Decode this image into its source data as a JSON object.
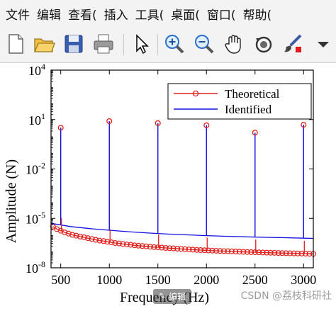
{
  "menu": [
    "文件",
    "编辑",
    "查看(",
    "插入",
    "工具(",
    "桌面(",
    "窗口(",
    "帮助("
  ],
  "toolbar_icons": [
    "new-file-icon",
    "open-folder-icon",
    "save-icon",
    "print-icon",
    "select-arrow-icon",
    "zoom-in-icon",
    "zoom-out-icon",
    "pan-hand-icon",
    "rotate-3d-icon",
    "brush-icon",
    "dropdown-arrow-icon"
  ],
  "watermark": {
    "edit_label": "编辑",
    "credit": "CSDN @荔枝科研社"
  },
  "chart_data": {
    "type": "line",
    "xlabel": "Frequency (Hz)",
    "ylabel": "Amplitude (N)",
    "xlim": [
      400,
      3100
    ],
    "ylim_log10": [
      -8,
      4
    ],
    "y_scale": "log",
    "xticks": [
      500,
      1000,
      1500,
      2000,
      2500,
      3000
    ],
    "yticks": [
      {
        "exp": -8,
        "label": "10",
        "sup": "-8"
      },
      {
        "exp": -5,
        "label": "10",
        "sup": "-5"
      },
      {
        "exp": -2,
        "label": "10",
        "sup": "-2"
      },
      {
        "exp": 1,
        "label": "10",
        "sup": "1"
      },
      {
        "exp": 4,
        "label": "10",
        "sup": "4"
      }
    ],
    "grid": false,
    "legend_position": "top-right",
    "series": [
      {
        "name": "Theoretical",
        "color": "#e0201b",
        "style": "line-circle-markers",
        "points": [
          [
            420,
            3.16e-06
          ],
          [
            460,
            2.24e-06
          ],
          [
            500,
            1.78e-06
          ],
          [
            540,
            1.41e-06
          ],
          [
            580,
            1.2e-06
          ],
          [
            620,
            1e-06
          ],
          [
            660,
            8.9e-07
          ],
          [
            700,
            7.9e-07
          ],
          [
            740,
            7.1e-07
          ],
          [
            780,
            6.3e-07
          ],
          [
            820,
            5.6e-07
          ],
          [
            860,
            5e-07
          ],
          [
            900,
            4.5e-07
          ],
          [
            940,
            4.2e-07
          ],
          [
            980,
            3.8e-07
          ],
          [
            1020,
            3.5e-07
          ],
          [
            1060,
            3.2e-07
          ],
          [
            1100,
            3e-07
          ],
          [
            1140,
            2.8e-07
          ],
          [
            1180,
            2.6e-07
          ],
          [
            1220,
            2.5e-07
          ],
          [
            1260,
            2.3e-07
          ],
          [
            1300,
            2.2e-07
          ],
          [
            1340,
            2.1e-07
          ],
          [
            1380,
            2e-07
          ],
          [
            1420,
            1.9e-07
          ],
          [
            1460,
            1.8e-07
          ],
          [
            1500,
            1.75e-07
          ],
          [
            1540,
            1.68e-07
          ],
          [
            1580,
            1.6e-07
          ],
          [
            1620,
            1.55e-07
          ],
          [
            1660,
            1.5e-07
          ],
          [
            1700,
            1.45e-07
          ],
          [
            1740,
            1.4e-07
          ],
          [
            1780,
            1.35e-07
          ],
          [
            1820,
            1.3e-07
          ],
          [
            1860,
            1.26e-07
          ],
          [
            1900,
            1.22e-07
          ],
          [
            1940,
            1.19e-07
          ],
          [
            1980,
            1.16e-07
          ],
          [
            2020,
            1.13e-07
          ],
          [
            2060,
            1.1e-07
          ],
          [
            2100,
            1.08e-07
          ],
          [
            2140,
            1.05e-07
          ],
          [
            2180,
            1.03e-07
          ],
          [
            2220,
            1.01e-07
          ],
          [
            2260,
            9.9e-08
          ],
          [
            2300,
            9.7e-08
          ],
          [
            2340,
            9.5e-08
          ],
          [
            2380,
            9.3e-08
          ],
          [
            2420,
            9.1e-08
          ],
          [
            2460,
            8.9e-08
          ],
          [
            2500,
            8.8e-08
          ],
          [
            2540,
            8.6e-08
          ],
          [
            2580,
            8.5e-08
          ],
          [
            2620,
            8.3e-08
          ],
          [
            2660,
            8.2e-08
          ],
          [
            2700,
            8.1e-08
          ],
          [
            2740,
            7.9e-08
          ],
          [
            2780,
            7.8e-08
          ],
          [
            2820,
            7.7e-08
          ],
          [
            2860,
            7.6e-08
          ],
          [
            2900,
            7.5e-08
          ],
          [
            2940,
            7.4e-08
          ],
          [
            2980,
            7.3e-08
          ],
          [
            3020,
            7.2e-08
          ],
          [
            3060,
            7.1e-08
          ],
          [
            3100,
            7e-08
          ]
        ],
        "peaks": [
          {
            "x": 500,
            "y": 3.2
          },
          {
            "x": 1000,
            "y": 8.0
          },
          {
            "x": 1500,
            "y": 6.0
          },
          {
            "x": 2000,
            "y": 4.5
          },
          {
            "x": 2500,
            "y": 1.6
          },
          {
            "x": 3000,
            "y": 4.8
          }
        ]
      },
      {
        "name": "Identified",
        "color": "#1010e0",
        "style": "line",
        "points": [
          [
            400,
            5e-06
          ],
          [
            600,
            3.2e-06
          ],
          [
            800,
            2.4e-06
          ],
          [
            1000,
            1.9e-06
          ],
          [
            1200,
            1.55e-06
          ],
          [
            1400,
            1.3e-06
          ],
          [
            1600,
            1.12e-06
          ],
          [
            1800,
            1e-06
          ],
          [
            2000,
            9e-07
          ],
          [
            2200,
            8.2e-07
          ],
          [
            2400,
            7.6e-07
          ],
          [
            2600,
            7.1e-07
          ],
          [
            2800,
            6.7e-07
          ],
          [
            3000,
            6.3e-07
          ],
          [
            3100,
            6.1e-07
          ]
        ],
        "peaks": [
          {
            "x": 500,
            "y": 3.2
          },
          {
            "x": 1000,
            "y": 8.0
          },
          {
            "x": 1500,
            "y": 6.0
          },
          {
            "x": 2000,
            "y": 4.5
          },
          {
            "x": 2500,
            "y": 1.6
          },
          {
            "x": 3000,
            "y": 4.8
          }
        ]
      }
    ]
  }
}
